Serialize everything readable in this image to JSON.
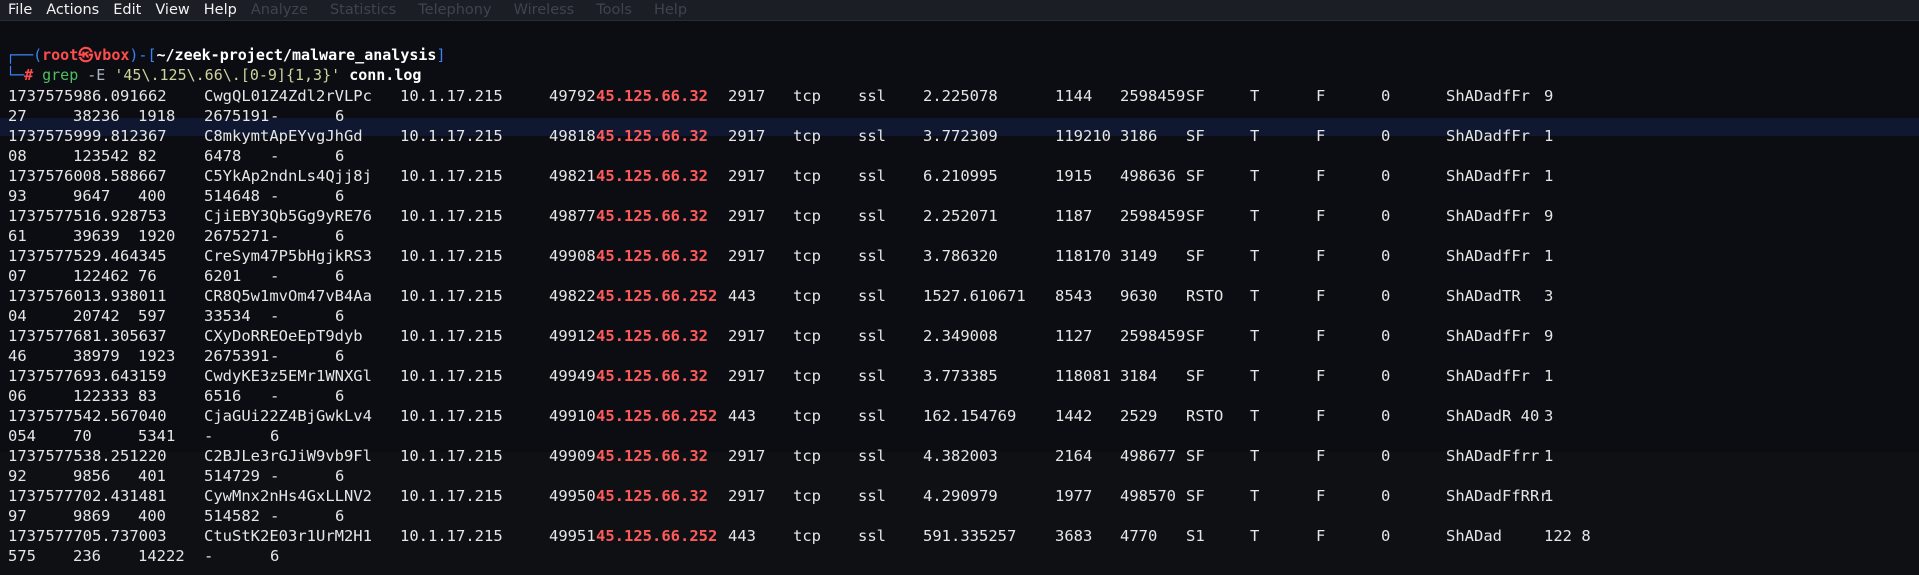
{
  "menu": [
    "File",
    "Actions",
    "Edit",
    "View",
    "Help"
  ],
  "ghost_menu": [
    "Analyze",
    "Statistics",
    "Telephony",
    "Wireless",
    "Tools",
    "Help"
  ],
  "prompt": {
    "user": "root",
    "at_symbol": "㉿",
    "host": "vbox",
    "path": "~/zeek-project/malware_analysis",
    "hash": "#",
    "command": "grep",
    "flag": "-E",
    "pattern": "'45\\.125\\.66\\.[0-9]{1,3}'",
    "file": "conn.log"
  },
  "records": [
    {
      "ts": "1737575986.091662",
      "uid": "CwgQL01Z4Zdl2rVLPc",
      "orig_h": "10.1.17.215",
      "orig_p": "49792",
      "resp_h": "45.125.66.32",
      "resp_p": "2917",
      "proto": "tcp",
      "service": "ssl",
      "duration": "2.225078",
      "orig_bytes": "1144",
      "resp_bytes": "2598459",
      "state": "SF",
      "local_orig": "T",
      "local_resp": "F",
      "missed": "0",
      "history": "ShADadfFr",
      "tail": "9",
      "l2a": "27",
      "l2b": "38236",
      "l2c": "1918",
      "l2d": "2675191",
      "l2e": "-",
      "l2f": "6"
    },
    {
      "ts": "1737575999.812367",
      "uid": "C8mkymtApEYvgJhGd",
      "orig_h": "10.1.17.215",
      "orig_p": "49818",
      "resp_h": "45.125.66.32",
      "resp_p": "2917",
      "proto": "tcp",
      "service": "ssl",
      "duration": "3.772309",
      "orig_bytes": "119210",
      "resp_bytes": "3186",
      "state": "SF",
      "local_orig": "T",
      "local_resp": "F",
      "missed": "0",
      "history": "ShADadfFr",
      "tail": "1",
      "l2a": "08",
      "l2b": "123542",
      "l2c": "82",
      "l2d": "6478",
      "l2e": "-",
      "l2f": "6"
    },
    {
      "ts": "1737576008.588667",
      "uid": "C5YkAp2ndnLs4Qjj8j",
      "orig_h": "10.1.17.215",
      "orig_p": "49821",
      "resp_h": "45.125.66.32",
      "resp_p": "2917",
      "proto": "tcp",
      "service": "ssl",
      "duration": "6.210995",
      "orig_bytes": "1915",
      "resp_bytes": "498636",
      "state": "SF",
      "local_orig": "T",
      "local_resp": "F",
      "missed": "0",
      "history": "ShADadfFr",
      "tail": "1",
      "l2a": "93",
      "l2b": "9647",
      "l2c": "400",
      "l2d": "514648",
      "l2e": "-",
      "l2f": "6"
    },
    {
      "ts": "1737577516.928753",
      "uid": "CjiEBY3Qb5Gg9yRE76",
      "orig_h": "10.1.17.215",
      "orig_p": "49877",
      "resp_h": "45.125.66.32",
      "resp_p": "2917",
      "proto": "tcp",
      "service": "ssl",
      "duration": "2.252071",
      "orig_bytes": "1187",
      "resp_bytes": "2598459",
      "state": "SF",
      "local_orig": "T",
      "local_resp": "F",
      "missed": "0",
      "history": "ShADadfFr",
      "tail": "9",
      "l2a": "61",
      "l2b": "39639",
      "l2c": "1920",
      "l2d": "2675271",
      "l2e": "-",
      "l2f": "6"
    },
    {
      "ts": "1737577529.464345",
      "uid": "CreSym47P5bHgjkRS3",
      "orig_h": "10.1.17.215",
      "orig_p": "49908",
      "resp_h": "45.125.66.32",
      "resp_p": "2917",
      "proto": "tcp",
      "service": "ssl",
      "duration": "3.786320",
      "orig_bytes": "118170",
      "resp_bytes": "3149",
      "state": "SF",
      "local_orig": "T",
      "local_resp": "F",
      "missed": "0",
      "history": "ShADadfFr",
      "tail": "1",
      "l2a": "07",
      "l2b": "122462",
      "l2c": "76",
      "l2d": "6201",
      "l2e": "-",
      "l2f": "6"
    },
    {
      "ts": "1737576013.938011",
      "uid": "CR8Q5w1mvOm47vB4Aa",
      "orig_h": "10.1.17.215",
      "orig_p": "49822",
      "resp_h": "45.125.66.252",
      "resp_p": "443",
      "proto": "tcp",
      "service": "ssl",
      "duration": "1527.610671",
      "orig_bytes": "8543",
      "resp_bytes": "9630",
      "state": "RSTO",
      "local_orig": "T",
      "local_resp": "F",
      "missed": "0",
      "history": "ShADadTR",
      "tail": "3",
      "l2a": "04",
      "l2b": "20742",
      "l2c": "597",
      "l2d": "33534",
      "l2e": "-",
      "l2f": "6"
    },
    {
      "ts": "1737577681.305637",
      "uid": "CXyDoRREOeEpT9dyb",
      "orig_h": "10.1.17.215",
      "orig_p": "49912",
      "resp_h": "45.125.66.32",
      "resp_p": "2917",
      "proto": "tcp",
      "service": "ssl",
      "duration": "2.349008",
      "orig_bytes": "1127",
      "resp_bytes": "2598459",
      "state": "SF",
      "local_orig": "T",
      "local_resp": "F",
      "missed": "0",
      "history": "ShADadfFr",
      "tail": "9",
      "l2a": "46",
      "l2b": "38979",
      "l2c": "1923",
      "l2d": "2675391",
      "l2e": "-",
      "l2f": "6"
    },
    {
      "ts": "1737577693.643159",
      "uid": "CwdyKE3z5EMr1WNXGl",
      "orig_h": "10.1.17.215",
      "orig_p": "49949",
      "resp_h": "45.125.66.32",
      "resp_p": "2917",
      "proto": "tcp",
      "service": "ssl",
      "duration": "3.773385",
      "orig_bytes": "118081",
      "resp_bytes": "3184",
      "state": "SF",
      "local_orig": "T",
      "local_resp": "F",
      "missed": "0",
      "history": "ShADadfFr",
      "tail": "1",
      "l2a": "06",
      "l2b": "122333",
      "l2c": "83",
      "l2d": "6516",
      "l2e": "-",
      "l2f": "6"
    },
    {
      "ts": "1737577542.567040",
      "uid": "CjaGUi22Z4BjGwkLv4",
      "orig_h": "10.1.17.215",
      "orig_p": "49910",
      "resp_h": "45.125.66.252",
      "resp_p": "443",
      "proto": "tcp",
      "service": "ssl",
      "duration": "162.154769",
      "orig_bytes": "1442",
      "resp_bytes": "2529",
      "state": "RSTO",
      "local_orig": "T",
      "local_resp": "F",
      "missed": "0",
      "history": "ShADadR 40",
      "tail": "3",
      "l2a": "054",
      "l2b": "70",
      "l2c": "5341",
      "l2d": "-",
      "l2e": "6",
      "l2f": ""
    },
    {
      "ts": "1737577538.251220",
      "uid": "C2BJLe3rGJiW9vb9Fl",
      "orig_h": "10.1.17.215",
      "orig_p": "49909",
      "resp_h": "45.125.66.32",
      "resp_p": "2917",
      "proto": "tcp",
      "service": "ssl",
      "duration": "4.382003",
      "orig_bytes": "2164",
      "resp_bytes": "498677",
      "state": "SF",
      "local_orig": "T",
      "local_resp": "F",
      "missed": "0",
      "history": "ShADadFfrr",
      "tail": "1",
      "l2a": "92",
      "l2b": "9856",
      "l2c": "401",
      "l2d": "514729",
      "l2e": "-",
      "l2f": "6"
    },
    {
      "ts": "1737577702.431481",
      "uid": "CywMnx2nHs4GxLLNV2",
      "orig_h": "10.1.17.215",
      "orig_p": "49950",
      "resp_h": "45.125.66.32",
      "resp_p": "2917",
      "proto": "tcp",
      "service": "ssl",
      "duration": "4.290979",
      "orig_bytes": "1977",
      "resp_bytes": "498570",
      "state": "SF",
      "local_orig": "T",
      "local_resp": "F",
      "missed": "0",
      "history": "ShADadFfRRr",
      "tail": "1",
      "l2a": "97",
      "l2b": "9869",
      "l2c": "400",
      "l2d": "514582",
      "l2e": "-",
      "l2f": "6"
    },
    {
      "ts": "1737577705.737003",
      "uid": "CtuStK2E03r1UrM2H1",
      "orig_h": "10.1.17.215",
      "orig_p": "49951",
      "resp_h": "45.125.66.252",
      "resp_p": "443",
      "proto": "tcp",
      "service": "ssl",
      "duration": "591.335257",
      "orig_bytes": "3683",
      "resp_bytes": "4770",
      "state": "S1",
      "local_orig": "T",
      "local_resp": "F",
      "missed": "0",
      "history": "ShADad",
      "tail": "122 8",
      "l2a": "575",
      "l2b": "236",
      "l2c": "14222",
      "l2d": "-",
      "l2e": "6",
      "l2f": ""
    }
  ],
  "colors": {
    "background": "#0c0d13",
    "prompt_blue": "#3b82f6",
    "prompt_red": "#ff4d4d",
    "match_red": "#ff5a5a",
    "text": "#e6e6e6"
  }
}
